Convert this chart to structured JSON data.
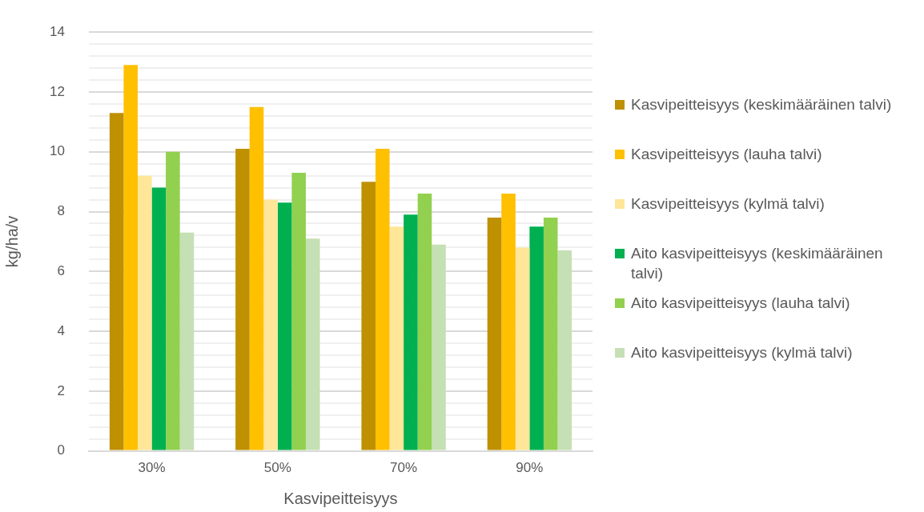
{
  "chart_data": {
    "type": "bar",
    "xlabel": "Kasvipeitteisyys",
    "ylabel": "kg/ha/v",
    "categories": [
      "30%",
      "50%",
      "70%",
      "90%"
    ],
    "series": [
      {
        "name": "Kasvipeitteisyys (keskimääräinen talvi)",
        "color": "#bf9000",
        "values": [
          11.3,
          10.1,
          9.0,
          7.8
        ]
      },
      {
        "name": "Kasvipeitteisyys (lauha talvi)",
        "color": "#ffc000",
        "values": [
          12.9,
          11.5,
          10.1,
          8.6
        ]
      },
      {
        "name": "Kasvipeitteisyys (kylmä talvi)",
        "color": "#ffe699",
        "values": [
          9.2,
          8.4,
          7.5,
          6.8
        ]
      },
      {
        "name": "Aito kasvipeitteisyys (keskimääräinen talvi)",
        "color": "#00b050",
        "values": [
          8.8,
          8.3,
          7.9,
          7.5
        ]
      },
      {
        "name": "Aito kasvipeitteisyys (lauha talvi)",
        "color": "#92d050",
        "values": [
          10.0,
          9.3,
          8.6,
          7.8
        ]
      },
      {
        "name": "Aito kasvipeitteisyys (kylmä talvi)",
        "color": "#c5e0b4",
        "values": [
          7.3,
          7.1,
          6.9,
          6.7
        ]
      }
    ],
    "ylim": [
      0,
      14
    ],
    "yticks": [
      0,
      {
        "value": 0.4,
        "label": null
      },
      {
        "value": 0.8,
        "label": null
      },
      {
        "value": 1.2,
        "label": null
      },
      {
        "value": 1.6,
        "label": null
      },
      2,
      {
        "value": 2.4,
        "label": null
      },
      {
        "value": 2.8,
        "label": null
      },
      {
        "value": 3.2,
        "label": null
      },
      {
        "value": 3.6,
        "label": null
      },
      4,
      {
        "value": 4.4,
        "label": null
      },
      {
        "value": 4.8,
        "label": null
      },
      {
        "value": 5.2,
        "label": null
      },
      {
        "value": 5.6,
        "label": null
      },
      6,
      {
        "value": 6.4,
        "label": null
      },
      {
        "value": 6.8,
        "label": null
      },
      {
        "value": 7.2,
        "label": null
      },
      {
        "value": 7.6,
        "label": null
      },
      8,
      {
        "value": 8.4,
        "label": null
      },
      {
        "value": 8.8,
        "label": null
      },
      {
        "value": 9.2,
        "label": null
      },
      {
        "value": 9.6,
        "label": null
      },
      10,
      {
        "value": 10.4,
        "label": null
      },
      {
        "value": 10.8,
        "label": null
      },
      {
        "value": 11.2,
        "label": null
      },
      {
        "value": 11.6,
        "label": null
      },
      12,
      {
        "value": 12.4,
        "label": null
      },
      {
        "value": 12.8,
        "label": null
      },
      {
        "value": 13.2,
        "label": null
      },
      {
        "value": 13.6,
        "label": null
      },
      14
    ],
    "grid": "y",
    "legend": "right"
  }
}
